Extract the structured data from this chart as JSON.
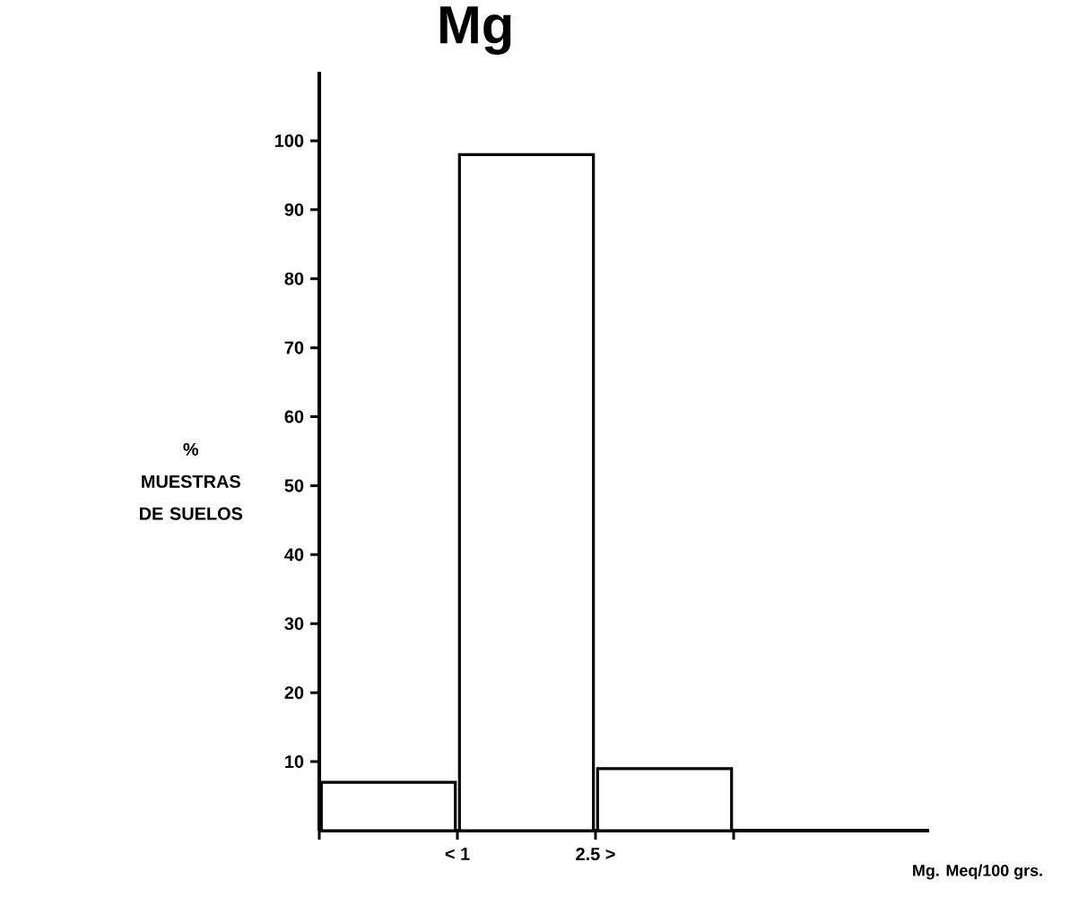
{
  "chart_data": {
    "type": "bar",
    "title": "Mg",
    "ylabel": "% MUESTRAS DE SUELOS",
    "categories": [
      null,
      null,
      null
    ],
    "values": [
      7,
      98,
      9
    ],
    "annotations": [
      "< 1",
      "2.5 >",
      "Mg. Meq/100 grs."
    ],
    "ylim": [
      0,
      110
    ],
    "yticks": [
      10,
      20,
      30,
      40,
      50,
      60,
      70,
      80,
      90,
      100
    ]
  }
}
